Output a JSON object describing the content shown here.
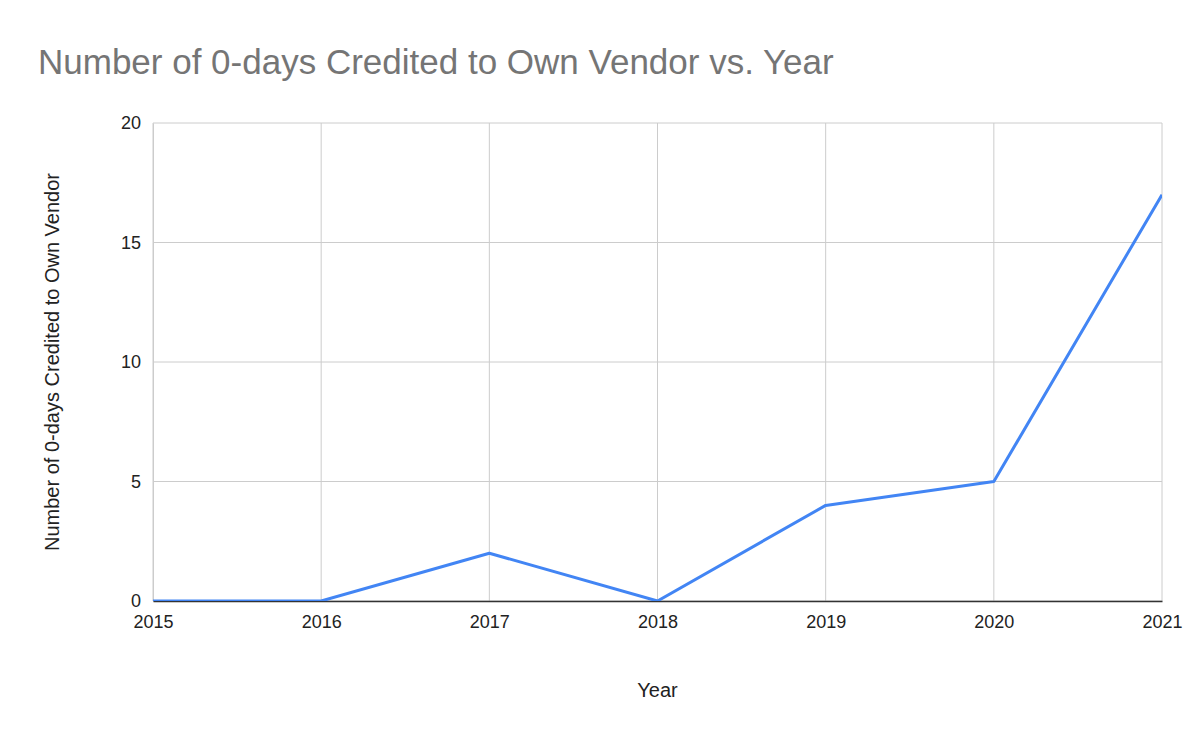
{
  "chart_data": {
    "type": "line",
    "title": "Number of 0-days Credited to Own Vendor vs. Year",
    "x_label": "Year",
    "y_label": "Number of 0-days Credited to Own Vendor",
    "x": [
      2015,
      2016,
      2017,
      2018,
      2019,
      2020,
      2021
    ],
    "values": [
      0,
      0,
      2,
      0,
      4,
      5,
      17
    ],
    "color": "#4285f4",
    "xlim": [
      2015,
      2021
    ],
    "xticks": [
      2015,
      2016,
      2017,
      2018,
      2019,
      2020,
      2021
    ],
    "ylim": [
      0,
      20
    ],
    "yticks": [
      0,
      5,
      10,
      15,
      20
    ],
    "grid": true
  }
}
